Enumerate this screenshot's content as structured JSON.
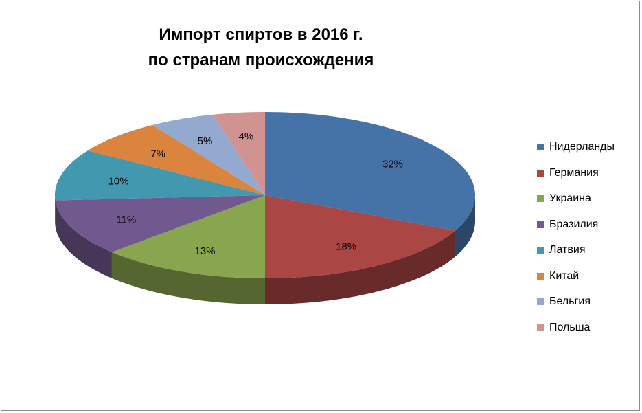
{
  "chart_data": {
    "type": "pie",
    "title_line1": "Импорт спиртов в 2016 г.",
    "title_line2": "по странам происхождения",
    "legend_position": "right",
    "slices": [
      {
        "name": "Нидерланды",
        "label": "32%",
        "value": 32,
        "color": "#4572A7"
      },
      {
        "name": "Германия",
        "label": "18%",
        "value": 18,
        "color": "#AA4643"
      },
      {
        "name": "Украина",
        "label": "13%",
        "value": 13,
        "color": "#89A54E"
      },
      {
        "name": "Бразилия",
        "label": "11%",
        "value": 11,
        "color": "#71588F"
      },
      {
        "name": "Латвия",
        "label": "10%",
        "value": 10,
        "color": "#4198AF"
      },
      {
        "name": "Китай",
        "label": "7%",
        "value": 7,
        "color": "#DB843D"
      },
      {
        "name": "Бельгия",
        "label": "5%",
        "value": 5,
        "color": "#93A9CF"
      },
      {
        "name": "Польша",
        "label": "4%",
        "value": 4,
        "color": "#D19392"
      }
    ]
  }
}
